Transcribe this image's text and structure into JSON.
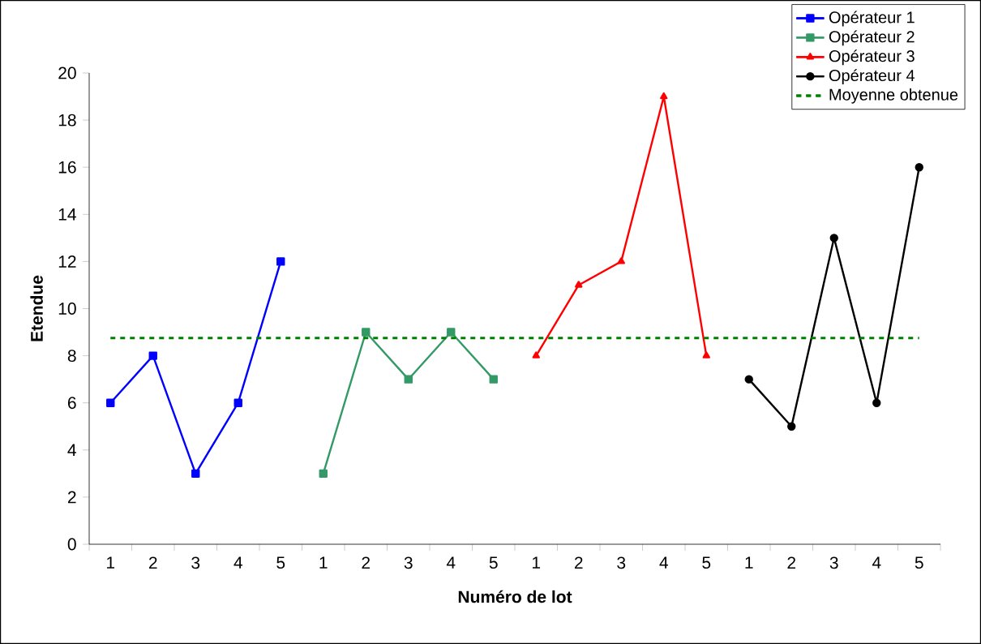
{
  "chart_data": {
    "type": "line",
    "xlabel": "Numéro de lot",
    "ylabel": "Etendue",
    "categories": [
      "1",
      "2",
      "3",
      "4",
      "5",
      "1",
      "2",
      "3",
      "4",
      "5",
      "1",
      "2",
      "3",
      "4",
      "5",
      "1",
      "2",
      "3",
      "4",
      "5"
    ],
    "series": [
      {
        "name": "Opérateur 1",
        "color": "#0000ff",
        "marker": "square",
        "values": [
          6,
          8,
          3,
          6,
          12,
          null,
          null,
          null,
          null,
          null,
          null,
          null,
          null,
          null,
          null,
          null,
          null,
          null,
          null,
          null
        ]
      },
      {
        "name": "Opérateur 2",
        "color": "#339966",
        "marker": "square",
        "values": [
          null,
          null,
          null,
          null,
          null,
          3,
          9,
          7,
          9,
          7,
          null,
          null,
          null,
          null,
          null,
          null,
          null,
          null,
          null,
          null
        ]
      },
      {
        "name": "Opérateur 3",
        "color": "#ff0000",
        "marker": "triangle",
        "values": [
          null,
          null,
          null,
          null,
          null,
          null,
          null,
          null,
          null,
          null,
          8,
          11,
          12,
          19,
          8,
          null,
          null,
          null,
          null,
          null
        ]
      },
      {
        "name": "Opérateur 4",
        "color": "#000000",
        "marker": "circle",
        "values": [
          null,
          null,
          null,
          null,
          null,
          null,
          null,
          null,
          null,
          null,
          null,
          null,
          null,
          null,
          null,
          7,
          5,
          13,
          6,
          16
        ]
      }
    ],
    "ref_lines": [
      {
        "axis": "y",
        "value": 8.75,
        "label": "Moyenne obtenue",
        "color": "#008000",
        "line_style": "dashed"
      }
    ],
    "ylim": [
      0,
      20
    ],
    "yticks": [
      0,
      2,
      4,
      6,
      8,
      10,
      12,
      14,
      16,
      18,
      20
    ],
    "grid": false,
    "legend": "top right"
  }
}
